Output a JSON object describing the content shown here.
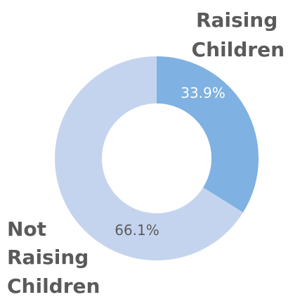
{
  "chart_data": {
    "type": "pie",
    "style": "donut",
    "categories": [
      "Raising Children",
      "Not Raising Children"
    ],
    "values": [
      33.9,
      66.1
    ],
    "data_labels": [
      "33.9%",
      "66.1%"
    ],
    "label_lines": [
      [
        "Raising",
        "Children"
      ],
      [
        "Not",
        "Raising",
        "Children"
      ]
    ],
    "colors": [
      "#7fb1e2",
      "#c5d4ee"
    ],
    "label_color": "#5a5a5a",
    "legend": "none"
  }
}
